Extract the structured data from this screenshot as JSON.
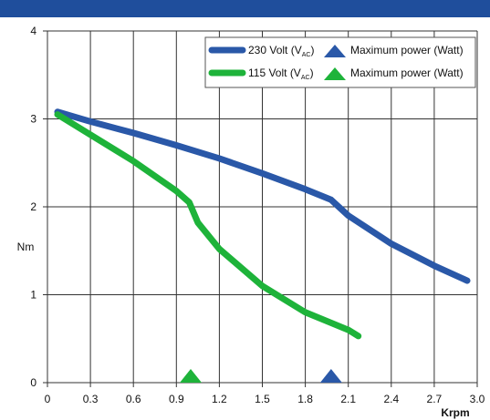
{
  "colors": {
    "header_bar": "#1f4e9c",
    "series_230": "#2a58a8",
    "series_115": "#1eb33a",
    "grid": "#333333"
  },
  "chart_data": {
    "type": "line",
    "xlabel": "Krpm",
    "ylabel": "Nm",
    "xlim": [
      0,
      3.0
    ],
    "ylim": [
      0,
      4
    ],
    "x_ticks": [
      "0",
      "0.3",
      "0.6",
      "0.9",
      "1.2",
      "1.5",
      "1.8",
      "2.1",
      "2.4",
      "2.7",
      "3.0"
    ],
    "y_ticks": [
      "0",
      "1",
      "2",
      "3",
      "4"
    ],
    "grid": true,
    "legend_position": "top-right",
    "legend_marker_label": "Maximum power (Watt)",
    "series": [
      {
        "name": "230 Volt (V",
        "name_sub": "AC",
        "name_suffix": ")",
        "color": "#2a58a8",
        "x": [
          0.07,
          0.3,
          0.6,
          0.9,
          1.2,
          1.5,
          1.8,
          1.98,
          2.1,
          2.4,
          2.7,
          2.93
        ],
        "y": [
          3.08,
          2.97,
          2.84,
          2.7,
          2.55,
          2.38,
          2.2,
          2.08,
          1.9,
          1.58,
          1.33,
          1.16
        ],
        "max_power_x": 1.98
      },
      {
        "name": "115 Volt (V",
        "name_sub": "AC",
        "name_suffix": ")",
        "color": "#1eb33a",
        "x": [
          0.07,
          0.3,
          0.6,
          0.9,
          0.99,
          1.05,
          1.2,
          1.5,
          1.8,
          2.1,
          2.17
        ],
        "y": [
          3.05,
          2.82,
          2.52,
          2.18,
          2.05,
          1.82,
          1.52,
          1.1,
          0.8,
          0.6,
          0.53
        ],
        "max_power_x": 1.0
      }
    ]
  }
}
